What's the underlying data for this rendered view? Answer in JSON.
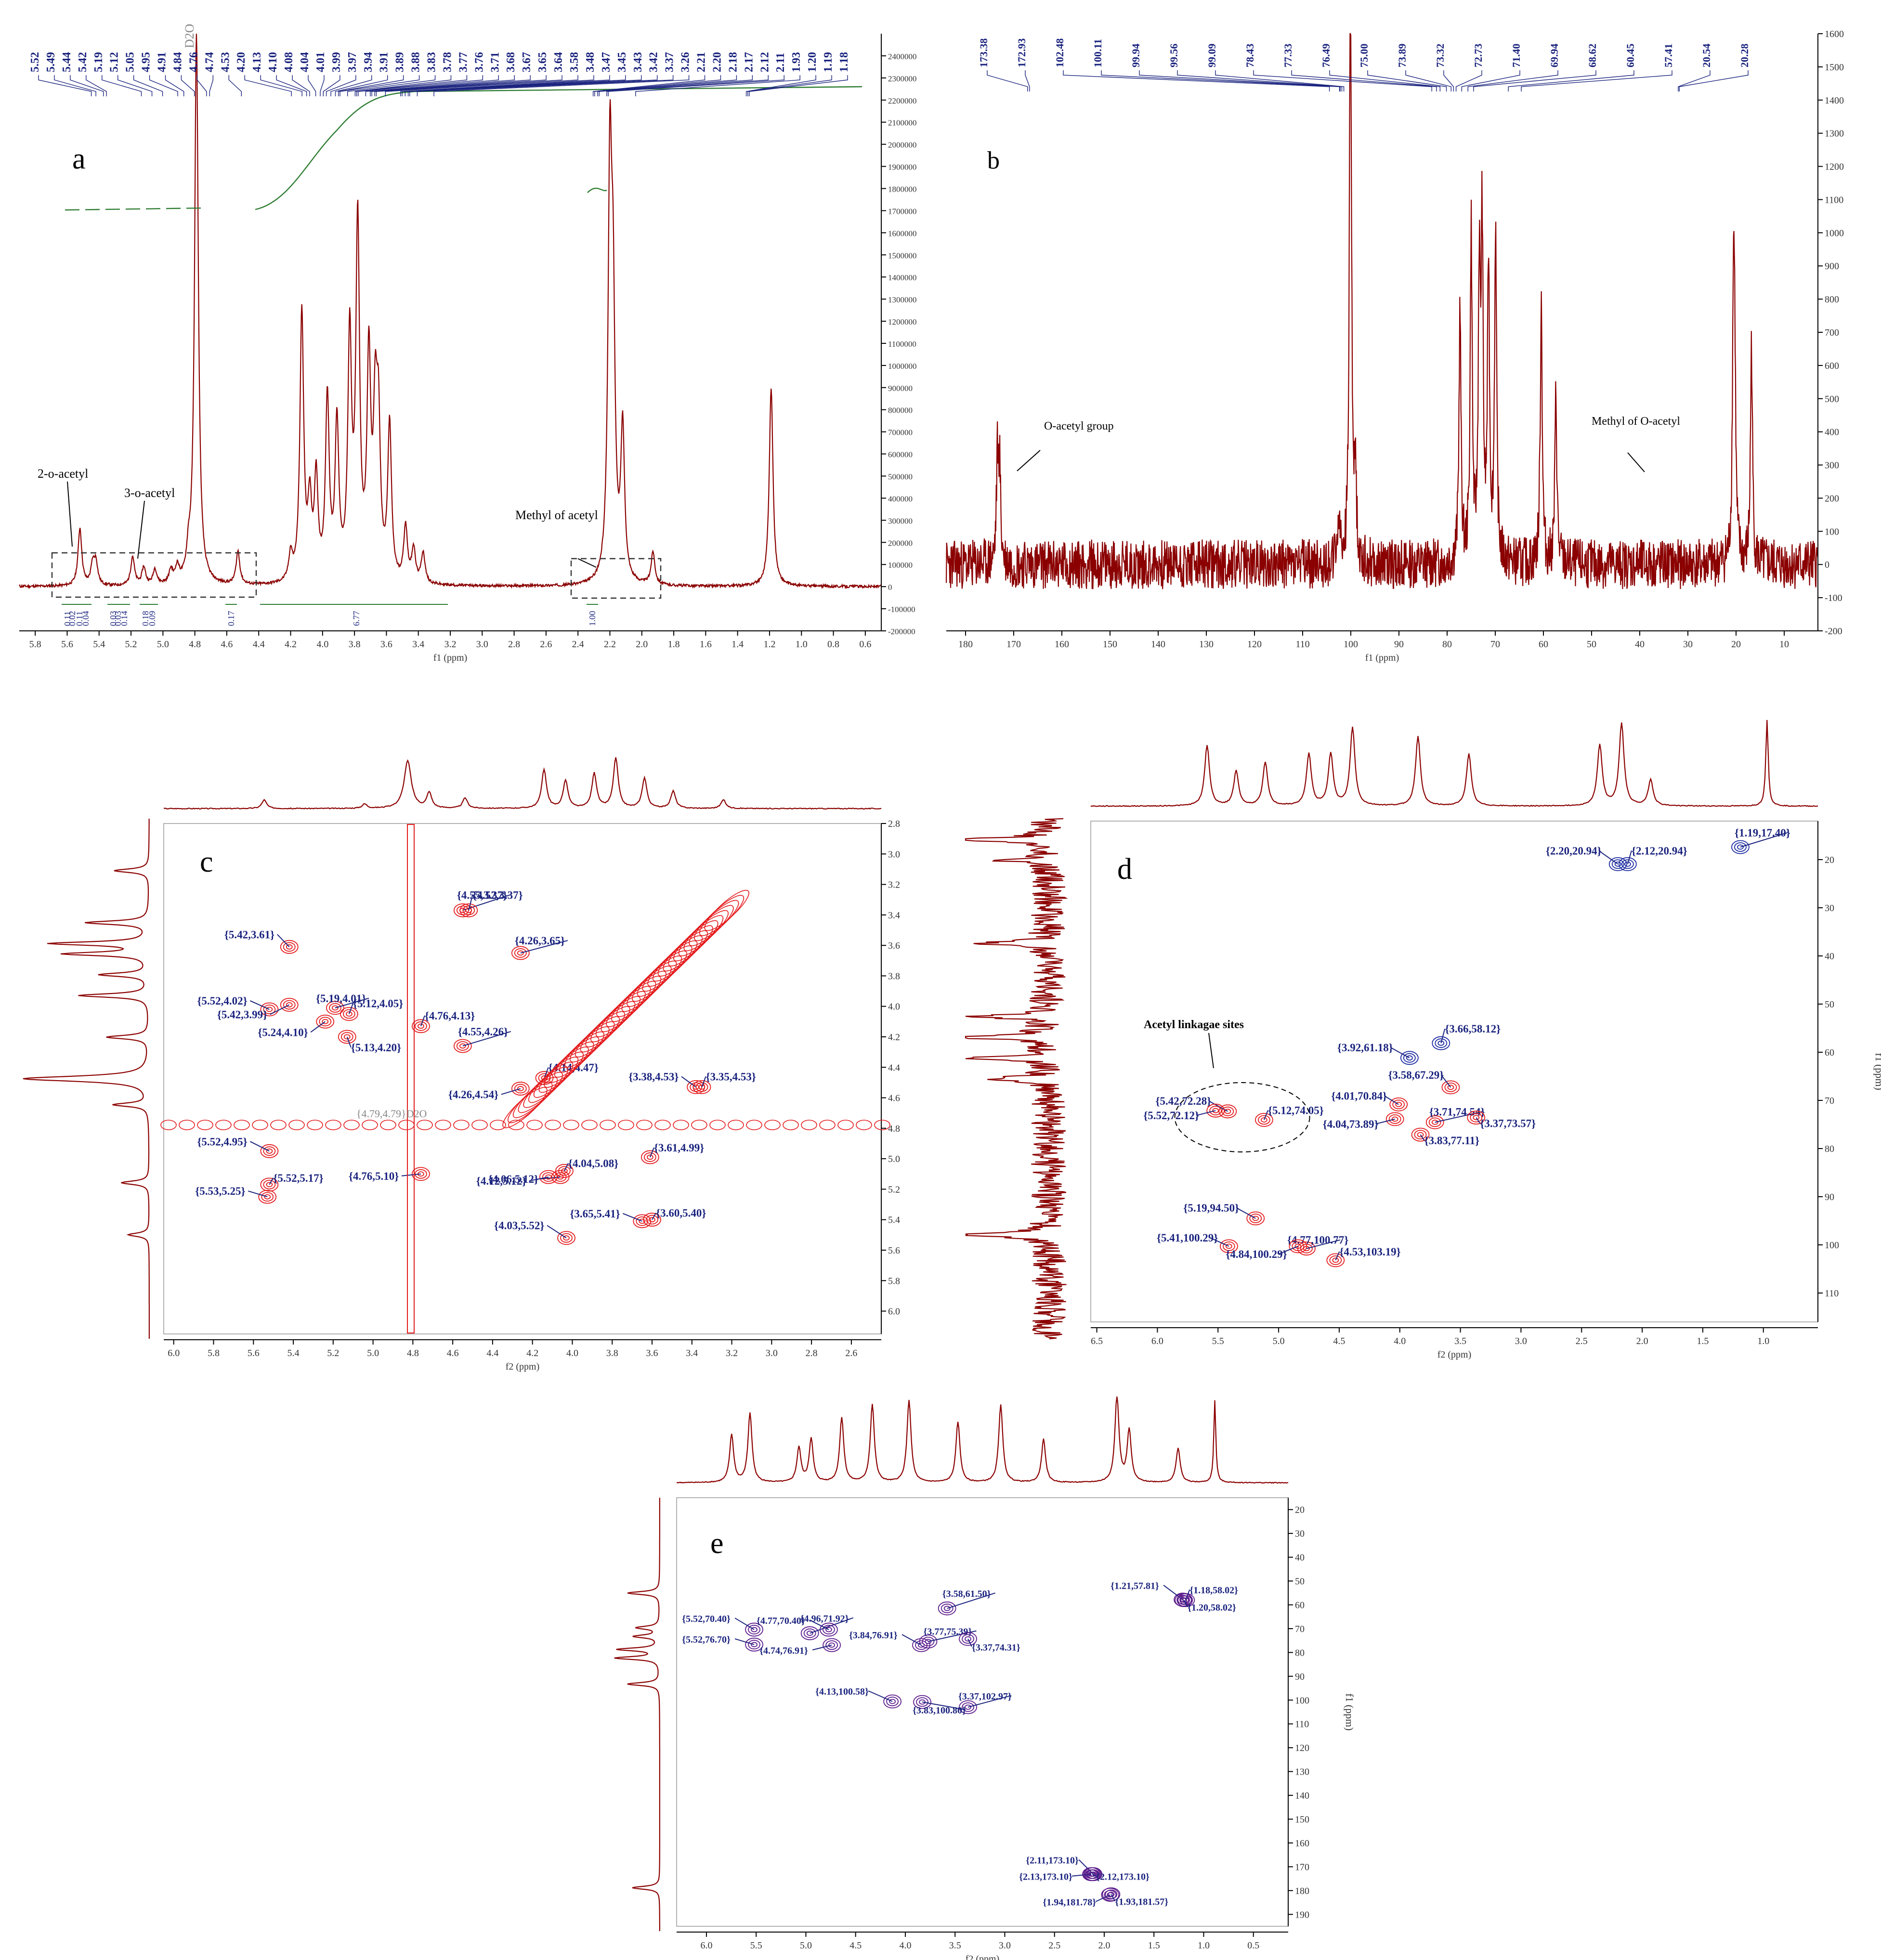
{
  "colors": {
    "spectrum": "#8b0000",
    "peak_label": "#1a237e",
    "integral": "#2e7d32",
    "contour": "#e41a1c",
    "contour_blue": "#1a2aa0",
    "purple": "#5b1a8c",
    "annotation": "#000000",
    "box": "#333333"
  },
  "chart_data": [
    {
      "id": "a",
      "type": "line",
      "panel_label": "a",
      "title": "",
      "xlabel": "f1 (ppm)",
      "xlim": [
        5.9,
        0.5
      ],
      "ylim": [
        -200000,
        2500000
      ],
      "x_ticks": [
        "5.8",
        "5.6",
        "5.4",
        "5.2",
        "5.0",
        "4.8",
        "4.6",
        "4.4",
        "4.2",
        "4.0",
        "3.8",
        "3.6",
        "3.4",
        "3.2",
        "3.0",
        "2.8",
        "2.6",
        "2.4",
        "2.2",
        "2.0",
        "1.8",
        "1.6",
        "1.4",
        "1.2",
        "1.0",
        "0.8",
        "0.6"
      ],
      "y_ticks": [
        "-200000",
        "-100000",
        "0",
        "100000",
        "200000",
        "300000",
        "400000",
        "500000",
        "600000",
        "700000",
        "800000",
        "900000",
        "1000000",
        "1100000",
        "1200000",
        "1300000",
        "1400000",
        "1500000",
        "1600000",
        "1700000",
        "1800000",
        "1900000",
        "2000000",
        "2100000",
        "2200000",
        "2300000",
        "2400000"
      ],
      "peak_labels": [
        "5.52",
        "5.49",
        "5.44",
        "5.42",
        "5.19",
        "5.12",
        "5.05",
        "4.95",
        "4.91",
        "4.84",
        "4.76",
        "4.74",
        "4.53",
        "4.20",
        "4.13",
        "4.10",
        "4.08",
        "4.04",
        "4.01",
        "3.99",
        "3.97",
        "3.94",
        "3.91",
        "3.89",
        "3.88",
        "3.83",
        "3.78",
        "3.77",
        "3.76",
        "3.71",
        "3.68",
        "3.67",
        "3.65",
        "3.64",
        "3.58",
        "3.48",
        "3.47",
        "3.45",
        "3.43",
        "3.42",
        "3.37",
        "3.26",
        "2.21",
        "2.20",
        "2.18",
        "2.17",
        "2.12",
        "2.11",
        "1.93",
        "1.20",
        "1.19",
        "1.18"
      ],
      "solvent_label": "D2O",
      "integrals": [
        "0.11",
        "0.02",
        "0.11",
        "0.04",
        "0.03",
        "0.03",
        "0.14",
        "0.18",
        "0.09",
        "0.17",
        "6.77",
        "1.00"
      ],
      "annotations": [
        "2-o-acetyl",
        "3-o-acetyl",
        "Methyl of acetyl"
      ],
      "peaks": [
        [
          5.52,
          260000
        ],
        [
          5.44,
          90000
        ],
        [
          5.42,
          100000
        ],
        [
          5.19,
          130000
        ],
        [
          5.12,
          80000
        ],
        [
          5.05,
          70000
        ],
        [
          4.95,
          60000
        ],
        [
          4.91,
          70000
        ],
        [
          4.84,
          100000
        ],
        [
          4.79,
          2500000
        ],
        [
          4.53,
          150000
        ],
        [
          4.2,
          120000
        ],
        [
          4.13,
          1220000
        ],
        [
          4.08,
          330000
        ],
        [
          4.04,
          450000
        ],
        [
          3.97,
          820000
        ],
        [
          3.91,
          700000
        ],
        [
          3.83,
          1080000
        ],
        [
          3.78,
          1600000
        ],
        [
          3.71,
          980000
        ],
        [
          3.67,
          680000
        ],
        [
          3.65,
          650000
        ],
        [
          3.58,
          700000
        ],
        [
          3.48,
          250000
        ],
        [
          3.43,
          150000
        ],
        [
          3.37,
          140000
        ],
        [
          2.2,
          1800000
        ],
        [
          2.18,
          1100000
        ],
        [
          2.12,
          680000
        ],
        [
          1.93,
          150000
        ],
        [
          1.19,
          900000
        ]
      ]
    },
    {
      "id": "b",
      "type": "line",
      "panel_label": "b",
      "title": "",
      "xlabel": "f1 (ppm)",
      "xlim": [
        184,
        3
      ],
      "ylim": [
        -200,
        1600
      ],
      "x_ticks": [
        "180",
        "170",
        "160",
        "150",
        "140",
        "130",
        "120",
        "110",
        "100",
        "90",
        "80",
        "70",
        "60",
        "50",
        "40",
        "30",
        "20",
        "10"
      ],
      "y_ticks": [
        "-200",
        "-100",
        "0",
        "100",
        "200",
        "300",
        "400",
        "500",
        "600",
        "700",
        "800",
        "900",
        "1000",
        "1100",
        "1200",
        "1300",
        "1400",
        "1500",
        "1600"
      ],
      "peak_labels": [
        "173.38",
        "172.93",
        "102.48",
        "100.11",
        "99.94",
        "99.56",
        "99.09",
        "78.43",
        "77.33",
        "76.49",
        "75.00",
        "73.89",
        "73.32",
        "72.73",
        "71.40",
        "69.94",
        "68.62",
        "60.45",
        "57.41",
        "20.54",
        "20.28"
      ],
      "annotations": [
        "O-acetyl group",
        "Methyl of O-acetyl"
      ],
      "peaks": [
        [
          173.38,
          300
        ],
        [
          172.93,
          280
        ],
        [
          102.48,
          150
        ],
        [
          100.11,
          1490
        ],
        [
          99.94,
          350
        ],
        [
          99.09,
          280
        ],
        [
          77.33,
          760
        ],
        [
          75.0,
          1000
        ],
        [
          73.32,
          830
        ],
        [
          72.73,
          950
        ],
        [
          71.4,
          900
        ],
        [
          69.94,
          1000
        ],
        [
          60.45,
          800
        ],
        [
          57.41,
          510
        ],
        [
          20.54,
          740
        ],
        [
          20.28,
          500
        ],
        [
          16.8,
          660
        ]
      ]
    },
    {
      "id": "c",
      "type": "heatmap",
      "panel_label": "c",
      "title": "",
      "xlabel": "f2 (ppm)",
      "ylabel": "",
      "xlim": [
        6.05,
        2.45
      ],
      "ylim": [
        2.8,
        6.15
      ],
      "x_ticks": [
        "6.0",
        "5.8",
        "5.6",
        "5.4",
        "5.2",
        "5.0",
        "4.8",
        "4.6",
        "4.4",
        "4.2",
        "4.0",
        "3.8",
        "3.6",
        "3.4",
        "3.2",
        "3.0",
        "2.8",
        "2.6"
      ],
      "y_ticks": [
        "2.8",
        "3.0",
        "3.2",
        "3.4",
        "3.6",
        "3.8",
        "4.0",
        "4.2",
        "4.4",
        "4.6",
        "4.8",
        "5.0",
        "5.2",
        "5.4",
        "5.6",
        "5.8",
        "6.0"
      ],
      "solvent_label": "{4.79,4.79}D2O",
      "cross_peaks": [
        {
          "label": "{4.55,3.37}",
          "x": 4.55,
          "y": 3.37
        },
        {
          "label": "{4.52,3.37}",
          "x": 4.52,
          "y": 3.37
        },
        {
          "label": "{4.26,3.65}",
          "x": 4.26,
          "y": 3.65
        },
        {
          "label": "{5.42,3.61}",
          "x": 5.42,
          "y": 3.61
        },
        {
          "label": "{5.52,4.02}",
          "x": 5.52,
          "y": 4.02
        },
        {
          "label": "{5.19,4.01}",
          "x": 5.19,
          "y": 4.01
        },
        {
          "label": "{5.12,4.05}",
          "x": 5.12,
          "y": 4.05
        },
        {
          "label": "{5.42,3.99}",
          "x": 5.42,
          "y": 3.99
        },
        {
          "label": "{5.24,4.10}",
          "x": 5.24,
          "y": 4.1
        },
        {
          "label": "{4.76,4.13}",
          "x": 4.76,
          "y": 4.13
        },
        {
          "label": "{5.13,4.20}",
          "x": 5.13,
          "y": 4.2
        },
        {
          "label": "{4.55,4.26}",
          "x": 4.55,
          "y": 4.26
        },
        {
          "label": "{4.26,4.54}",
          "x": 4.26,
          "y": 4.54
        },
        {
          "label": "{4.14,4.47}",
          "x": 4.14,
          "y": 4.47
        },
        {
          "label": "{3.38,4.53}",
          "x": 3.38,
          "y": 4.53
        },
        {
          "label": "{3.35,4.53}",
          "x": 3.35,
          "y": 4.53
        },
        {
          "label": "{5.52,4.95}",
          "x": 5.52,
          "y": 4.95
        },
        {
          "label": "{4.76,5.10}",
          "x": 4.76,
          "y": 5.1
        },
        {
          "label": "{5.53,5.25}",
          "x": 5.53,
          "y": 5.25
        },
        {
          "label": "{5.52,5.17}",
          "x": 5.52,
          "y": 5.17
        },
        {
          "label": "{4.06,5.12}",
          "x": 4.06,
          "y": 5.12
        },
        {
          "label": "{4.04,5.08}",
          "x": 4.04,
          "y": 5.08
        },
        {
          "label": "{4.12,5.12}",
          "x": 4.12,
          "y": 5.12
        },
        {
          "label": "{3.61,4.99}",
          "x": 3.61,
          "y": 4.99
        },
        {
          "label": "{3.65,5.41}",
          "x": 3.65,
          "y": 5.41
        },
        {
          "label": "{3.60,5.40}",
          "x": 3.6,
          "y": 5.4
        },
        {
          "label": "{4.03,5.52}",
          "x": 4.03,
          "y": 5.52
        }
      ]
    },
    {
      "id": "d",
      "type": "heatmap",
      "panel_label": "d",
      "title": "",
      "xlabel": "f2 (ppm)",
      "ylabel": "f1 (ppm)",
      "xlim": [
        6.55,
        0.55
      ],
      "ylim": [
        12,
        116
      ],
      "x_ticks": [
        "6.5",
        "6.0",
        "5.5",
        "5.0",
        "4.5",
        "4.0",
        "3.5",
        "3.0",
        "2.5",
        "2.0",
        "1.5",
        "1.0"
      ],
      "y_ticks": [
        "20",
        "30",
        "40",
        "50",
        "60",
        "70",
        "80",
        "90",
        "100",
        "110"
      ],
      "annotations": [
        "Acetyl linkagae sites"
      ],
      "cross_peaks": [
        {
          "label": "{1.19,17.40}",
          "x": 1.19,
          "y": 17.4
        },
        {
          "label": "{2.20,20.94}",
          "x": 2.2,
          "y": 20.94
        },
        {
          "label": "{2.12,20.94}",
          "x": 2.12,
          "y": 20.94
        },
        {
          "label": "{3.66,58.12}",
          "x": 3.66,
          "y": 58.12
        },
        {
          "label": "{3.92,61.18}",
          "x": 3.92,
          "y": 61.18
        },
        {
          "label": "{3.58,67.29}",
          "x": 3.58,
          "y": 67.29
        },
        {
          "label": "{5.42,72.28}",
          "x": 5.42,
          "y": 72.28
        },
        {
          "label": "{5.52,72.12}",
          "x": 5.52,
          "y": 72.12
        },
        {
          "label": "{5.12,74.05}",
          "x": 5.12,
          "y": 74.05
        },
        {
          "label": "{4.01,70.84}",
          "x": 4.01,
          "y": 70.84
        },
        {
          "label": "{3.71,74.54}",
          "x": 3.71,
          "y": 74.54
        },
        {
          "label": "{4.04,73.89}",
          "x": 4.04,
          "y": 73.89
        },
        {
          "label": "{3.37,73.57}",
          "x": 3.37,
          "y": 73.57
        },
        {
          "label": "{3.83,77.11}",
          "x": 3.83,
          "y": 77.11
        },
        {
          "label": "{5.19,94.50}",
          "x": 5.19,
          "y": 94.5
        },
        {
          "label": "{5.41,100.29}",
          "x": 5.41,
          "y": 100.29
        },
        {
          "label": "{4.77,100.77}",
          "x": 4.77,
          "y": 100.77
        },
        {
          "label": "{4.84,100.29}",
          "x": 4.84,
          "y": 100.29
        },
        {
          "label": "{4.53,103.19}",
          "x": 4.53,
          "y": 103.19
        }
      ]
    },
    {
      "id": "e",
      "type": "heatmap",
      "panel_label": "e",
      "title": "",
      "xlabel": "f2 (ppm)",
      "ylabel": "f1 (ppm)",
      "xlim": [
        6.3,
        0.15
      ],
      "ylim": [
        15,
        195
      ],
      "x_ticks": [
        "6.0",
        "5.5",
        "5.0",
        "4.5",
        "4.0",
        "3.5",
        "3.0",
        "2.5",
        "2.0",
        "1.5",
        "1.0",
        "0.5"
      ],
      "y_ticks": [
        "20",
        "30",
        "40",
        "50",
        "60",
        "70",
        "80",
        "90",
        "100",
        "110",
        "120",
        "130",
        "140",
        "150",
        "160",
        "170",
        "180",
        "190"
      ],
      "cross_peaks": [
        {
          "label": "{1.21,57.81}",
          "x": 1.21,
          "y": 57.81
        },
        {
          "label": "{1.18,58.02}",
          "x": 1.18,
          "y": 58.02
        },
        {
          "label": "{1.20,58.02}",
          "x": 1.2,
          "y": 58.02
        },
        {
          "label": "{3.58,61.50}",
          "x": 3.58,
          "y": 61.5
        },
        {
          "label": "{5.52,70.40}",
          "x": 5.52,
          "y": 70.4
        },
        {
          "label": "{4.96,71.92}",
          "x": 4.96,
          "y": 71.92
        },
        {
          "label": "{5.52,76.70}",
          "x": 5.52,
          "y": 76.7
        },
        {
          "label": "{4.77,70.40}",
          "x": 4.77,
          "y": 70.4
        },
        {
          "label": "{4.74,76.91}",
          "x": 4.74,
          "y": 76.91
        },
        {
          "label": "{3.77,75.39}",
          "x": 3.77,
          "y": 75.39
        },
        {
          "label": "{3.84,76.91}",
          "x": 3.84,
          "y": 76.91
        },
        {
          "label": "{3.37,74.31}",
          "x": 3.37,
          "y": 74.31
        },
        {
          "label": "{4.13,100.58}",
          "x": 4.13,
          "y": 100.58
        },
        {
          "label": "{3.37,102.97}",
          "x": 3.37,
          "y": 102.97
        },
        {
          "label": "{3.83,100.80}",
          "x": 3.83,
          "y": 100.8
        },
        {
          "label": "{2.11,173.10}",
          "x": 2.11,
          "y": 173.1
        },
        {
          "label": "{2.13,173.10}",
          "x": 2.13,
          "y": 173.1
        },
        {
          "label": "{2.12,173.10}",
          "x": 2.12,
          "y": 173.1
        },
        {
          "label": "{1.94,181.78}",
          "x": 1.94,
          "y": 181.78
        },
        {
          "label": "{1.93,181.57}",
          "x": 1.93,
          "y": 181.57
        }
      ]
    }
  ]
}
